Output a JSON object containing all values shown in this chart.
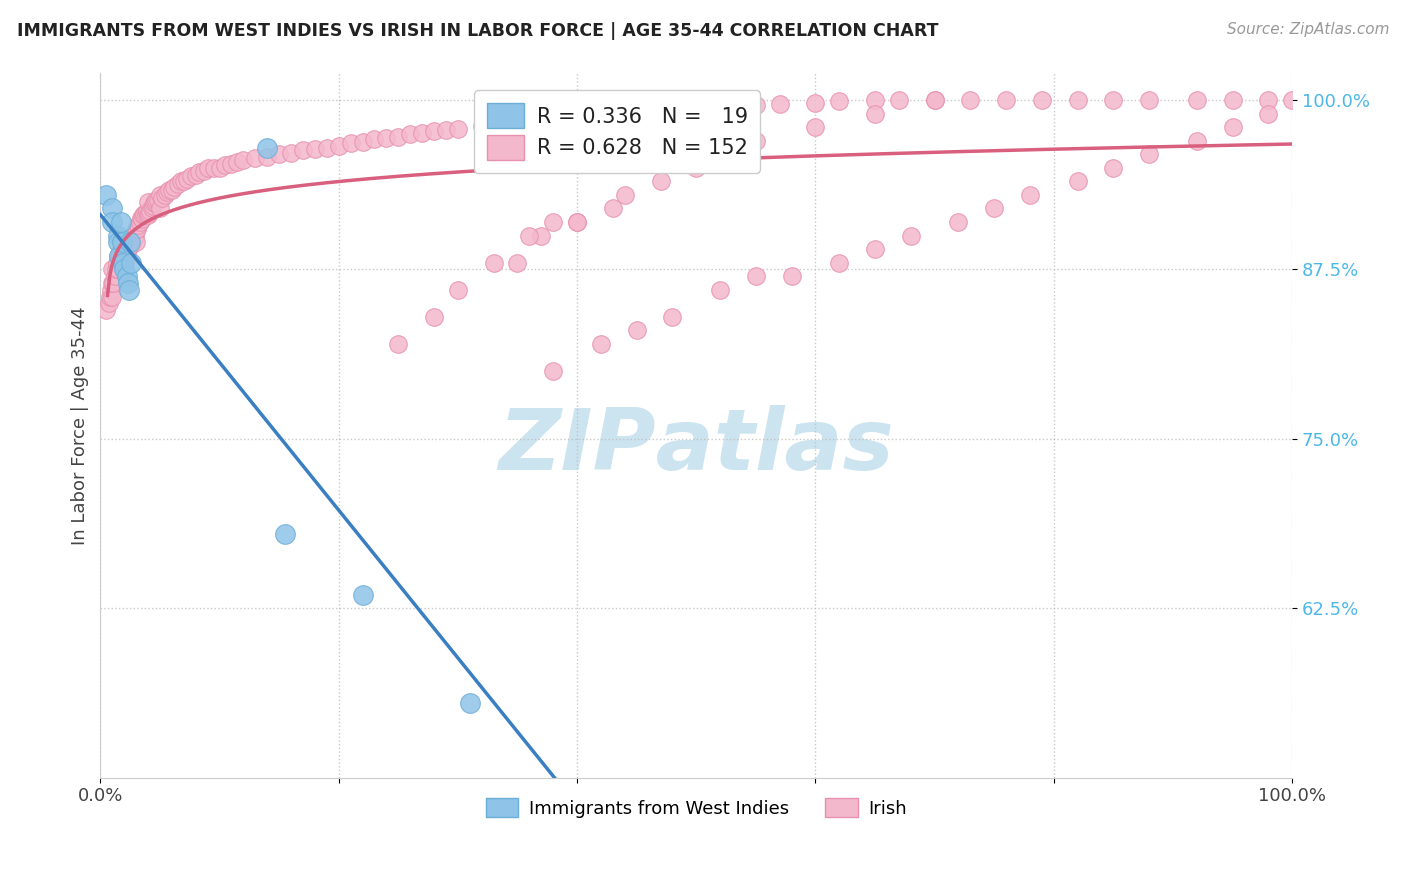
{
  "title": "IMMIGRANTS FROM WEST INDIES VS IRISH IN LABOR FORCE | AGE 35-44 CORRELATION CHART",
  "source": "Source: ZipAtlas.com",
  "ylabel": "In Labor Force | Age 35-44",
  "west_color": "#8fc4e8",
  "west_edge_color": "#6baed6",
  "irish_color": "#f4b8cc",
  "irish_edge_color": "#e891ae",
  "west_line_color": "#3a7fc1",
  "irish_line_color": "#d95f7f",
  "background_color": "#ffffff",
  "watermark_color": "#cce4f0",
  "xlim": [
    0.0,
    1.0
  ],
  "ylim": [
    0.5,
    1.02
  ],
  "yticks": [
    0.625,
    0.75,
    0.875,
    1.0
  ],
  "ytick_labels": [
    "62.5%",
    "75.0%",
    "87.5%",
    "100.0%"
  ],
  "xtick_labels": [
    "0.0%",
    "100.0%"
  ],
  "legend_labels": [
    "Immigrants from West Indies",
    "Irish"
  ],
  "west_x": [
    0.005,
    0.01,
    0.01,
    0.015,
    0.015,
    0.016,
    0.017,
    0.018,
    0.019,
    0.02,
    0.022,
    0.023,
    0.024,
    0.025,
    0.026,
    0.14,
    0.155,
    0.22,
    0.31
  ],
  "west_y": [
    0.93,
    0.92,
    0.91,
    0.9,
    0.895,
    0.885,
    0.91,
    0.895,
    0.88,
    0.875,
    0.87,
    0.865,
    0.86,
    0.895,
    0.88,
    0.965,
    0.68,
    0.635,
    0.555
  ],
  "irish_x": [
    0.005,
    0.007,
    0.008,
    0.009,
    0.01,
    0.01,
    0.01,
    0.011,
    0.012,
    0.013,
    0.014,
    0.015,
    0.015,
    0.016,
    0.017,
    0.018,
    0.019,
    0.02,
    0.02,
    0.021,
    0.022,
    0.022,
    0.023,
    0.024,
    0.025,
    0.026,
    0.027,
    0.028,
    0.029,
    0.03,
    0.03,
    0.031,
    0.032,
    0.033,
    0.034,
    0.035,
    0.036,
    0.037,
    0.038,
    0.039,
    0.04,
    0.04,
    0.041,
    0.042,
    0.043,
    0.044,
    0.045,
    0.046,
    0.047,
    0.048,
    0.05,
    0.05,
    0.052,
    0.054,
    0.056,
    0.058,
    0.06,
    0.062,
    0.065,
    0.068,
    0.07,
    0.073,
    0.076,
    0.08,
    0.083,
    0.087,
    0.09,
    0.095,
    0.1,
    0.105,
    0.11,
    0.115,
    0.12,
    0.13,
    0.14,
    0.15,
    0.16,
    0.17,
    0.18,
    0.19,
    0.2,
    0.21,
    0.22,
    0.23,
    0.24,
    0.25,
    0.26,
    0.27,
    0.28,
    0.29,
    0.3,
    0.32,
    0.33,
    0.35,
    0.37,
    0.39,
    0.41,
    0.44,
    0.46,
    0.48,
    0.5,
    0.52,
    0.55,
    0.57,
    0.6,
    0.62,
    0.65,
    0.67,
    0.7,
    0.73,
    0.76,
    0.79,
    0.82,
    0.85,
    0.88,
    0.92,
    0.95,
    0.98,
    1.0,
    0.35,
    0.37,
    0.4,
    0.43,
    0.25,
    0.28,
    0.3,
    0.33,
    0.36,
    0.38,
    0.4,
    0.44,
    0.47,
    0.5,
    0.55,
    0.6,
    0.65,
    0.7,
    0.38,
    0.42,
    0.45,
    0.48,
    0.52,
    0.55,
    0.58,
    0.62,
    0.65,
    0.68,
    0.72,
    0.75,
    0.78,
    0.82,
    0.85,
    0.88,
    0.92,
    0.95,
    0.98
  ],
  "irish_y": [
    0.845,
    0.85,
    0.855,
    0.86,
    0.855,
    0.865,
    0.875,
    0.865,
    0.87,
    0.875,
    0.88,
    0.875,
    0.885,
    0.885,
    0.89,
    0.885,
    0.89,
    0.875,
    0.885,
    0.88,
    0.885,
    0.895,
    0.89,
    0.893,
    0.895,
    0.893,
    0.896,
    0.898,
    0.9,
    0.895,
    0.905,
    0.905,
    0.908,
    0.91,
    0.913,
    0.912,
    0.915,
    0.916,
    0.917,
    0.918,
    0.915,
    0.925,
    0.917,
    0.918,
    0.92,
    0.922,
    0.924,
    0.925,
    0.926,
    0.926,
    0.92,
    0.93,
    0.928,
    0.93,
    0.932,
    0.934,
    0.934,
    0.936,
    0.938,
    0.94,
    0.94,
    0.942,
    0.944,
    0.945,
    0.947,
    0.948,
    0.95,
    0.95,
    0.95,
    0.952,
    0.953,
    0.954,
    0.956,
    0.957,
    0.958,
    0.96,
    0.961,
    0.963,
    0.964,
    0.965,
    0.966,
    0.968,
    0.969,
    0.971,
    0.972,
    0.973,
    0.975,
    0.976,
    0.977,
    0.978,
    0.979,
    0.981,
    0.982,
    0.984,
    0.985,
    0.987,
    0.988,
    0.99,
    0.991,
    0.993,
    0.994,
    0.995,
    0.996,
    0.997,
    0.998,
    0.999,
    1.0,
    1.0,
    1.0,
    1.0,
    1.0,
    1.0,
    1.0,
    1.0,
    1.0,
    1.0,
    1.0,
    1.0,
    1.0,
    0.88,
    0.9,
    0.91,
    0.92,
    0.82,
    0.84,
    0.86,
    0.88,
    0.9,
    0.91,
    0.91,
    0.93,
    0.94,
    0.95,
    0.97,
    0.98,
    0.99,
    1.0,
    0.8,
    0.82,
    0.83,
    0.84,
    0.86,
    0.87,
    0.87,
    0.88,
    0.89,
    0.9,
    0.91,
    0.92,
    0.93,
    0.94,
    0.95,
    0.96,
    0.97,
    0.98,
    0.99
  ]
}
